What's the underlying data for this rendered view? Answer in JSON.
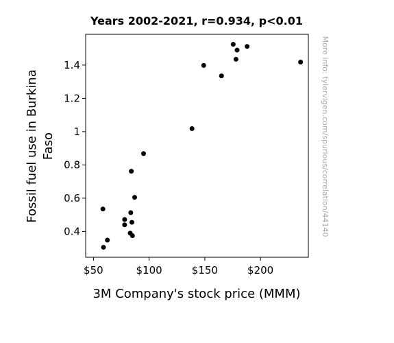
{
  "chart_data": {
    "type": "scatter",
    "title": "Years 2002-2021, r=0.934, p<0.01",
    "xlabel": "3M Company's stock price (MMM)",
    "ylabel_lines": [
      "Fossil fuel use in Burkina",
      "Faso"
    ],
    "watermark": "More info: tylervigen.com/spurious/correlation/44140",
    "xlim": [
      43,
      243
    ],
    "ylim": [
      0.245,
      1.585
    ],
    "x_ticks": [
      {
        "value": 50,
        "label": "$50"
      },
      {
        "value": 100,
        "label": "$100"
      },
      {
        "value": 150,
        "label": "$150"
      },
      {
        "value": 200,
        "label": "$200"
      }
    ],
    "y_ticks": [
      {
        "value": 0.4,
        "label": "0.4"
      },
      {
        "value": 0.6,
        "label": "0.6"
      },
      {
        "value": 0.8,
        "label": "0.8"
      },
      {
        "value": 1.0,
        "label": "1"
      },
      {
        "value": 1.2,
        "label": "1.2"
      },
      {
        "value": 1.4,
        "label": "1.4"
      }
    ],
    "grid": false,
    "marker_color": "#000000",
    "points": [
      {
        "x": 58.5,
        "y": 0.535
      },
      {
        "x": 59,
        "y": 0.305
      },
      {
        "x": 62.5,
        "y": 0.348
      },
      {
        "x": 78,
        "y": 0.472
      },
      {
        "x": 78,
        "y": 0.44
      },
      {
        "x": 83,
        "y": 0.39
      },
      {
        "x": 83.5,
        "y": 0.513
      },
      {
        "x": 84,
        "y": 0.762
      },
      {
        "x": 84.5,
        "y": 0.455
      },
      {
        "x": 85,
        "y": 0.375
      },
      {
        "x": 87,
        "y": 0.605
      },
      {
        "x": 95,
        "y": 0.868
      },
      {
        "x": 138.5,
        "y": 1.018
      },
      {
        "x": 149,
        "y": 1.398
      },
      {
        "x": 165,
        "y": 1.335
      },
      {
        "x": 175.5,
        "y": 1.525
      },
      {
        "x": 178,
        "y": 1.435
      },
      {
        "x": 179,
        "y": 1.49
      },
      {
        "x": 188,
        "y": 1.512
      },
      {
        "x": 236,
        "y": 1.418
      }
    ]
  }
}
